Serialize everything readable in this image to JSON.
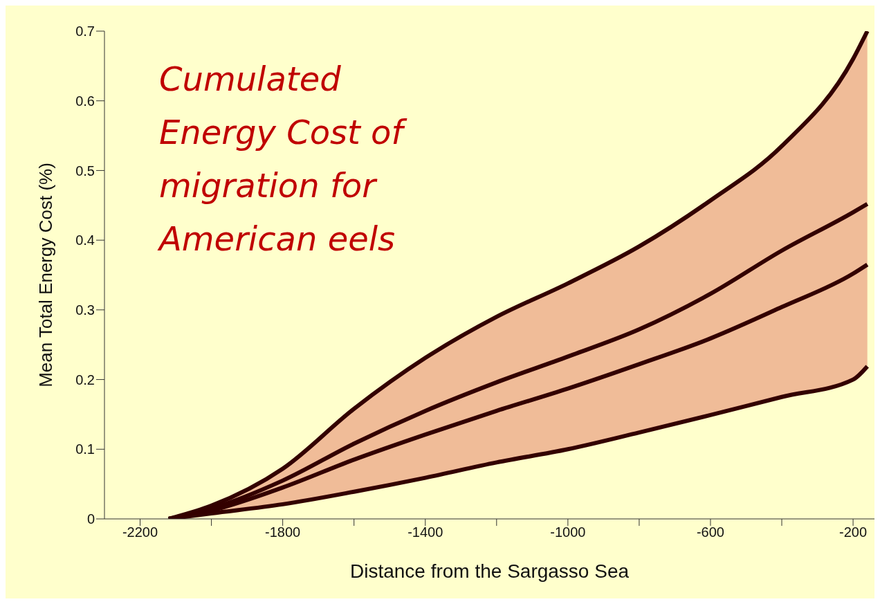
{
  "chart_data": {
    "type": "line",
    "title": "Cumulated Energy Cost of migration for American eels",
    "xlabel": "Distance from the Sargasso Sea",
    "ylabel": "Mean Total Energy Cost (%)",
    "x": [
      -2120,
      -2000,
      -1800,
      -1600,
      -1400,
      -1200,
      -1000,
      -800,
      -600,
      -400,
      -200,
      -160
    ],
    "series": [
      {
        "color": "#330000",
        "values": [
          0,
          0.012,
          0.045,
          0.085,
          0.121,
          0.155,
          0.187,
          0.222,
          0.259,
          0.304,
          0.352,
          0.365
        ],
        "lower": [
          0,
          0.008,
          0.021,
          0.039,
          0.059,
          0.081,
          0.1,
          0.124,
          0.149,
          0.175,
          0.2,
          0.219
        ],
        "upper": [
          0,
          0.019,
          0.072,
          0.158,
          0.231,
          0.29,
          0.338,
          0.391,
          0.457,
          0.535,
          0.66,
          0.7
        ]
      },
      {
        "color": "#330000",
        "values": [
          0,
          0.019,
          0.072,
          0.158,
          0.231,
          0.29,
          0.338,
          0.391,
          0.457,
          0.535,
          0.66,
          0.7
        ]
      },
      {
        "color": "#330000",
        "values": [
          0,
          0.015,
          0.055,
          0.108,
          0.155,
          0.196,
          0.233,
          0.272,
          0.323,
          0.385,
          0.44,
          0.452
        ]
      },
      {
        "color": "#330000",
        "values": [
          0,
          0.008,
          0.021,
          0.039,
          0.059,
          0.081,
          0.1,
          0.124,
          0.149,
          0.175,
          0.2,
          0.219
        ]
      }
    ],
    "xlim": [
      -2300,
      -140
    ],
    "ylim": [
      0,
      0.7
    ],
    "xticks": [
      -2200,
      {
        "value": -2000,
        "label": null
      },
      -1800,
      {
        "value": -1600,
        "label": null
      },
      -1400,
      {
        "value": -1200,
        "label": null
      },
      -1000,
      {
        "value": -800,
        "label": null
      },
      -600,
      {
        "value": -400,
        "label": null
      },
      -200
    ],
    "yticks": [
      0,
      0.1,
      0.2,
      0.3,
      0.4,
      0.5,
      0.6,
      0.7
    ],
    "line_style": "solid",
    "marker": "none",
    "legend": false,
    "grid": false
  }
}
